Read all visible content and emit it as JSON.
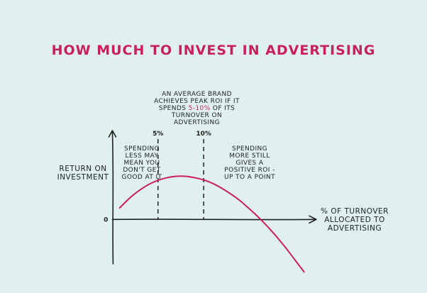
{
  "title": "HOW MUCH TO INVEST IN ADVERTISING",
  "colors": {
    "background": "#dff0ee",
    "curve": "#c8205c",
    "ink": "#1f1f1f",
    "title": "#c8205c"
  },
  "annotations": {
    "top_pre": "AN AVERAGE BRAND ACHIEVES PEAK ROI IF IT SPENDS ",
    "top_highlight": "5-10%",
    "top_post": " OF ITS TURNOVER ON ADVERTISING",
    "left": "SPENDING LESS MAY MEAN YOU DON'T GET GOOD AT IT",
    "right": "SPENDING MORE STILL GIVES A POSITIVE ROI - UP TO A POINT"
  },
  "chart_data": {
    "type": "line",
    "title": "HOW MUCH TO INVEST IN ADVERTISING",
    "xlabel": "% OF TURNOVER ALLOCATED TO ADVERTISING",
    "ylabel": "RETURN ON INVESTMENT",
    "y_tick_labels": [
      {
        "value": 0,
        "label": "0"
      }
    ],
    "x_markers": [
      {
        "value": 5,
        "label": "5%",
        "style": "dashed"
      },
      {
        "value": 10,
        "label": "10%",
        "style": "dashed"
      }
    ],
    "xlim": [
      -0.5,
      22.5
    ],
    "ylim": [
      -10,
      20
    ],
    "grid": false,
    "series": [
      {
        "color": "#c8205c",
        "x": [
          0.8,
          2,
          3,
          4,
          5,
          6,
          7,
          8,
          9,
          10,
          11,
          12,
          13,
          14,
          15,
          16,
          17,
          18,
          19,
          20,
          21
        ],
        "y": [
          2.6,
          5.0,
          6.6,
          7.9,
          8.8,
          9.4,
          9.7,
          9.7,
          9.4,
          8.9,
          8.1,
          7.0,
          5.7,
          4.2,
          2.4,
          0.5,
          -1.6,
          -3.9,
          -6.4,
          -9.1,
          -11.8
        ]
      }
    ]
  }
}
